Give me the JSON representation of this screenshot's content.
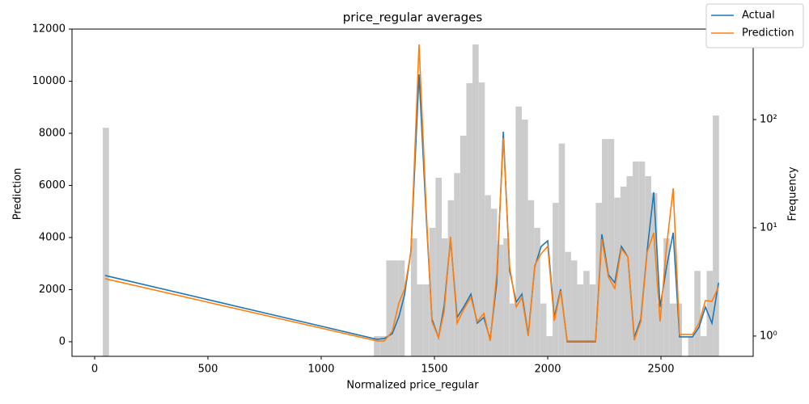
{
  "chart_data": {
    "type": "line",
    "title": "price_regular averages",
    "xlabel": "Normalized price_regular",
    "ylabel": "Prediction",
    "y2label": "Frequency",
    "xlim": [
      -100,
      2907
    ],
    "ylim": [
      -560,
      12000
    ],
    "y2lim": [
      0.65,
      685
    ],
    "y2log": true,
    "xticks": [
      0,
      500,
      1000,
      1500,
      2000,
      2500
    ],
    "yticks": [
      0,
      2000,
      4000,
      6000,
      8000,
      10000,
      12000
    ],
    "y2ticks": [
      {
        "value": 1,
        "label": "10⁰"
      },
      {
        "value": 10,
        "label": "10¹"
      },
      {
        "value": 100,
        "label": "10²"
      }
    ],
    "legend": "upper right",
    "x": [
      46,
      1246,
      1279,
      1314,
      1343,
      1368,
      1396,
      1432,
      1464,
      1489,
      1518,
      1543,
      1571,
      1600,
      1629,
      1661,
      1689,
      1718,
      1746,
      1775,
      1804,
      1832,
      1861,
      1886,
      1914,
      1943,
      1971,
      2000,
      2029,
      2057,
      2086,
      2211,
      2239,
      2268,
      2296,
      2325,
      2354,
      2382,
      2411,
      2439,
      2468,
      2496,
      2525,
      2554,
      2582,
      2639,
      2668,
      2696,
      2725,
      2754
    ],
    "series": [
      {
        "name": "Actual",
        "color": "#1f77b4",
        "values": [
          2543,
          93,
          124,
          310,
          961,
          1800,
          3473,
          10264,
          4744,
          868,
          155,
          1395,
          3938,
          930,
          1333,
          1829,
          713,
          930,
          93,
          2264,
          8062,
          2729,
          1519,
          1829,
          279,
          2884,
          3659,
          3876,
          930,
          2016,
          0,
          0,
          4124,
          2574,
          2264,
          3659,
          3256,
          155,
          868,
          3504,
          5736,
          1333,
          2884,
          4186,
          186,
          186,
          558,
          1333,
          713,
          2264
        ]
      },
      {
        "name": "Prediction",
        "color": "#ff7f0e",
        "values": [
          2419,
          31,
          31,
          403,
          1488,
          2016,
          3442,
          11411,
          4992,
          775,
          155,
          1178,
          4031,
          713,
          1240,
          1705,
          775,
          1085,
          31,
          2574,
          7814,
          2884,
          1333,
          1705,
          217,
          2946,
          3380,
          3659,
          806,
          1953,
          31,
          31,
          3938,
          2481,
          2047,
          3566,
          3256,
          62,
          775,
          3442,
          4186,
          775,
          3690,
          5891,
          279,
          279,
          713,
          1581,
          1550,
          2109
        ]
      }
    ],
    "histogram": {
      "color": "#cccccc",
      "axis": "y2",
      "bins": [
        36,
        63.2,
        90.4,
        117.6,
        144.8,
        172,
        199.2,
        226.4,
        253.6,
        280.8,
        308,
        335.2,
        362.4,
        389.6,
        416.8,
        444,
        471.2,
        498.4,
        525.6,
        552.8,
        580,
        607.2,
        634.4,
        661.6,
        688.8,
        716,
        743.2,
        770.4,
        797.6,
        824.8,
        852,
        879.2,
        906.4,
        933.6,
        960.8,
        988,
        1015.2,
        1042.4,
        1069.6,
        1096.8,
        1124,
        1151.2,
        1178.4,
        1205.6,
        1232.8,
        1260,
        1287.2,
        1314.4,
        1341.6,
        1368.8,
        1396,
        1423.2,
        1450.4,
        1477.6,
        1504.8,
        1532,
        1559.2,
        1586.4,
        1613.6,
        1640.8,
        1668,
        1695.2,
        1722.4,
        1749.6,
        1776.8,
        1804,
        1831.2,
        1858.4,
        1885.6,
        1912.8,
        1940,
        1967.2,
        1994.4,
        2021.6,
        2048.8,
        2076,
        2103.2,
        2130.4,
        2157.6,
        2184.8,
        2212,
        2239.2,
        2266.4,
        2293.6,
        2320.8,
        2348,
        2375.2,
        2402.4,
        2429.6,
        2456.8,
        2484,
        2511.2,
        2538.4,
        2565.6,
        2592.8,
        2620,
        2647.2,
        2674.4,
        2701.6,
        2728.8,
        2756
      ],
      "counts": [
        84,
        0,
        0,
        0,
        0,
        0,
        0,
        0,
        0,
        0,
        0,
        0,
        0,
        0,
        0,
        0,
        0,
        0,
        0,
        0,
        0,
        0,
        0,
        0,
        0,
        0,
        0,
        0,
        0,
        0,
        0,
        0,
        0,
        0,
        0,
        0,
        0,
        0,
        0,
        0,
        0,
        0,
        0,
        0,
        1,
        1,
        5,
        5,
        5,
        0,
        8,
        3,
        3,
        10,
        29,
        8,
        18,
        32,
        71,
        217,
        494,
        220,
        20,
        15,
        7,
        8,
        2,
        132,
        100,
        18,
        10,
        2,
        1,
        17,
        60,
        6,
        5,
        3,
        4,
        3,
        17,
        66,
        66,
        19,
        24,
        30,
        41,
        41,
        30,
        21,
        2,
        8,
        2,
        2,
        0,
        1,
        4,
        1,
        4,
        109
      ]
    }
  }
}
